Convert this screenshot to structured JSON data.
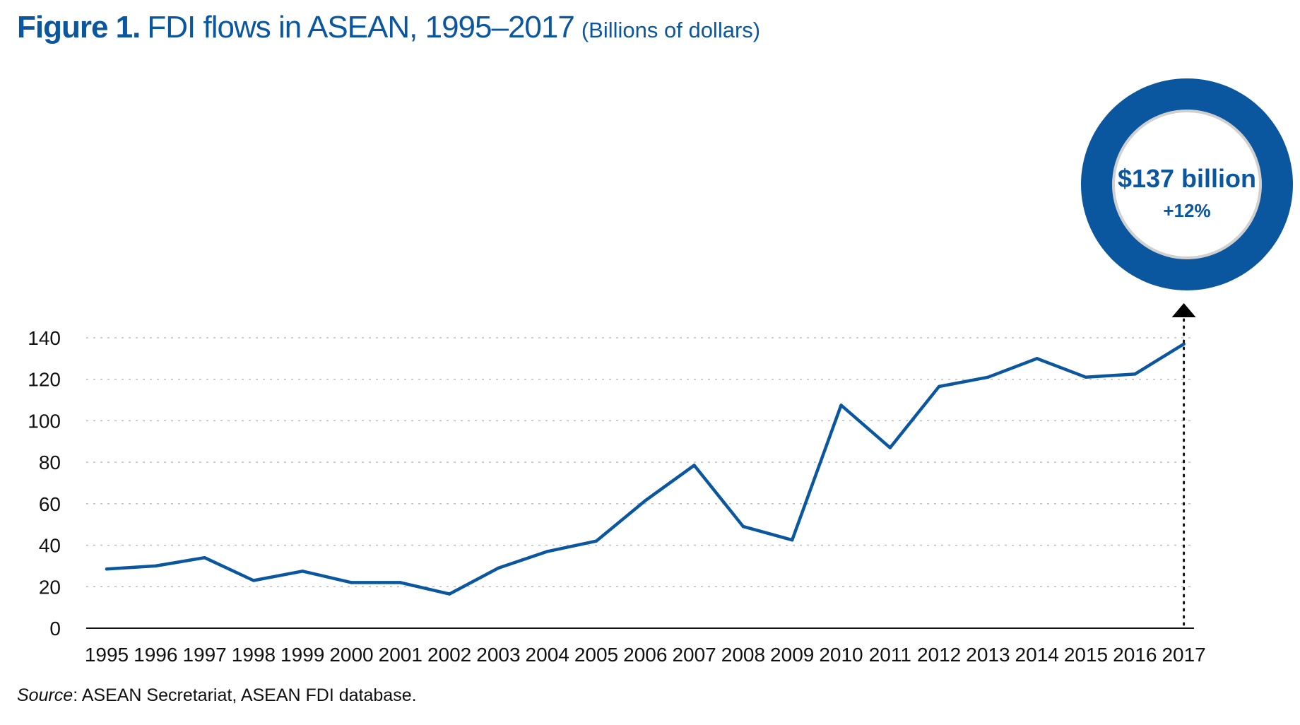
{
  "title": {
    "figure_label": "Figure 1.",
    "text": "FDI flows in ASEAN, 1995–2017",
    "unit": "(Billions of dollars)"
  },
  "colors": {
    "accent": "#0a57a0",
    "line": "#0a57a0",
    "grid": "#bdbdbd",
    "axis": "#111111"
  },
  "callout": {
    "value": "$137 billion",
    "change": "+12%"
  },
  "source": {
    "label": "Source",
    "text": ": ASEAN Secretariat, ASEAN FDI database."
  },
  "chart_data": {
    "type": "line",
    "title": "FDI flows in ASEAN, 1995–2017",
    "subtitle": "(Billions of dollars)",
    "xlabel": "",
    "ylabel": "",
    "x": [
      "1995",
      "1996",
      "1997",
      "1998",
      "1999",
      "2000",
      "2001",
      "2002",
      "2003",
      "2004",
      "2005",
      "2006",
      "2007",
      "2008",
      "2009",
      "2010",
      "2011",
      "2012",
      "2013",
      "2014",
      "2015",
      "2016",
      "2017"
    ],
    "series": [
      {
        "values": [
          28.5,
          30,
          34,
          23,
          27.5,
          22,
          22,
          16.5,
          29,
          37,
          42,
          61.5,
          78.5,
          49,
          42.5,
          107.5,
          87,
          116.5,
          121,
          130,
          121,
          122.5,
          137
        ]
      }
    ],
    "ylim": [
      0,
      140
    ],
    "yticks": [
      0,
      20,
      40,
      60,
      80,
      100,
      120,
      140
    ],
    "grid": true,
    "legend": "none",
    "annotations": [
      {
        "x": "2017",
        "text": "$137 billion"
      },
      {
        "x": "2017",
        "text": "+12%"
      }
    ]
  }
}
